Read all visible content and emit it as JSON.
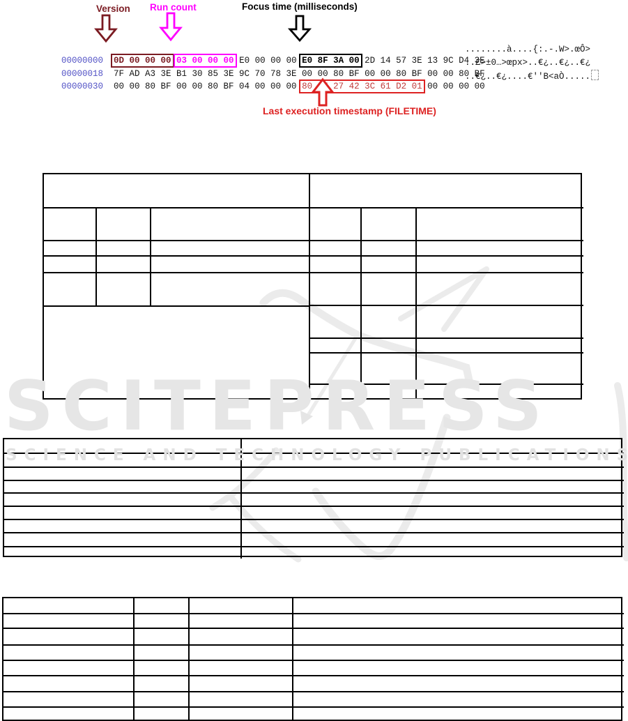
{
  "figure": {
    "labels": {
      "version": "Version",
      "run_count": "Run count",
      "focus_time": "Focus time (milliseconds)",
      "last_execution": "Last execution timestamp (FILETIME)"
    },
    "colors": {
      "version": "#7b1b22",
      "run_count": "#ff00ff",
      "focus_time": "#000000",
      "last_execution": "#dd2222",
      "offset_text": "#5353c6"
    },
    "hexdump": {
      "rows": [
        {
          "offset": "00000000",
          "version_bytes": "0D 00 00 00",
          "gap": " ",
          "runcount_bytes": "03 00 00 00",
          "mid_bytes": " E0 00 00 00 ",
          "focus_bytes": "E0 8F 3A 00",
          "tail_bytes": " 2D 14 57 3E 13 9C D4 3E",
          "ascii": "........à....{:.-.W>.œÔ>"
        },
        {
          "offset": "00000018",
          "bytes": "7F AD A3 3E B1 30 85 3E 9C 70 78 3E 00 00 80 BF 00 00 80 BF 00 00 80 BF",
          "ascii": "..£>±0…>œpx>..€¿..€¿..€¿"
        },
        {
          "offset": "00000030",
          "head_bytes": "00 00 80 BF 00 00 80 BF 04 00 00 00 ",
          "timestamp_bytes": "80 27 27 42 3C 61 D2 01",
          "tail_bytes": " 00 00 00 00",
          "ascii": "..€¿..€¿....€''B<aÒ....."
        }
      ]
    }
  },
  "watermark": {
    "title": "SCITEPRESS",
    "subtitle": "SCIENCE AND TECHNOLOGY PUBLICATIONS"
  }
}
